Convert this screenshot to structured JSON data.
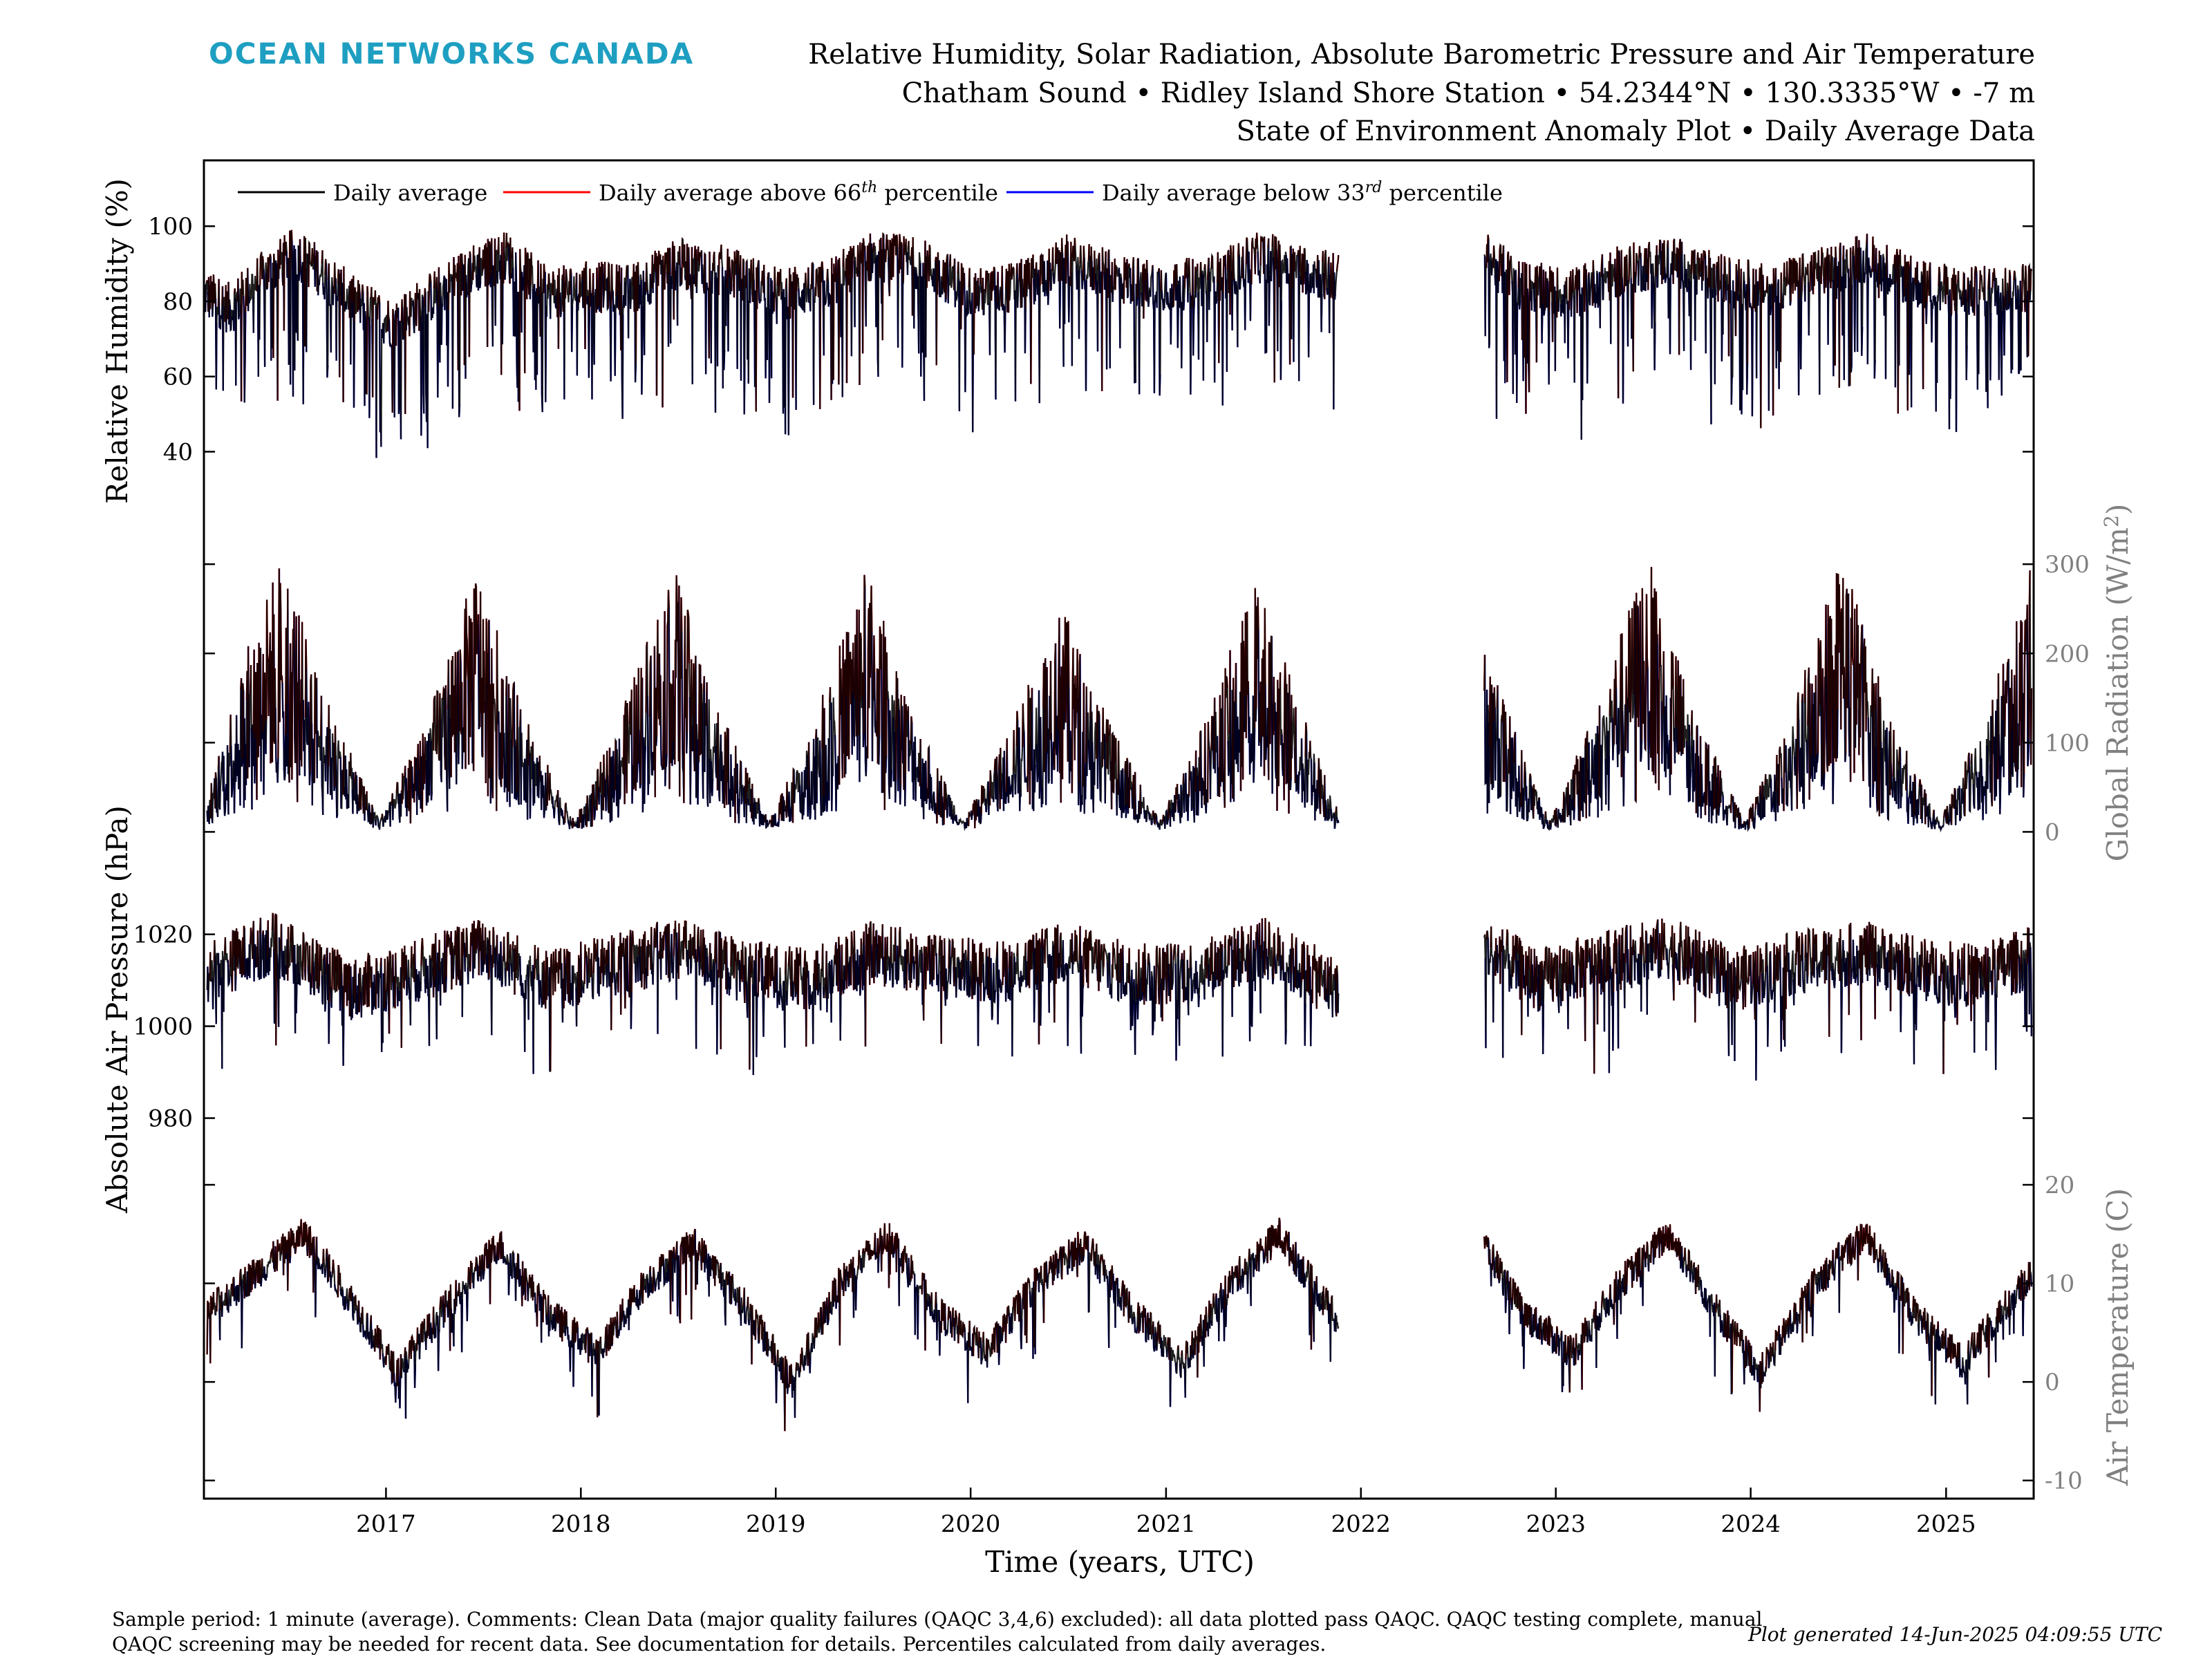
{
  "header": {
    "logo_text": "OCEAN NETWORKS CANADA",
    "title_line1": "Relative Humidity, Solar Radiation, Absolute Barometric Pressure and Air Temperature",
    "title_line2": "Chatham Sound • Ridley Island Shore Station • 54.2344°N • 130.3335°W • -7 m",
    "title_line3": "State of Environment Anomaly Plot • Daily Average Data"
  },
  "footer": {
    "note_line1": "Sample period: 1 minute (average). Comments: Clean Data (major quality failures (QAQC 3,4,6) excluded): all data plotted pass QAQC. QAQC testing complete, manual",
    "note_line2": "QAQC screening may be needed for recent data. See documentation for details. Percentiles calculated from daily averages.",
    "generated": "Plot generated 14-Jun-2025 04:09:55 UTC"
  },
  "colors": {
    "logo": "#1e9fc1",
    "daily": "#000000",
    "above": "#ff0000",
    "below": "#0000ff",
    "right_axis": "#808080"
  },
  "chart_data": {
    "type": "line",
    "xlabel": "Time (years, UTC)",
    "x_ticks": [
      "2017",
      "2018",
      "2019",
      "2020",
      "2021",
      "2022",
      "2023",
      "2024",
      "2025"
    ],
    "xlim": [
      "2016-01-26",
      "2025-06-14"
    ],
    "data_gap": [
      "2021-11-25",
      "2022-08-18"
    ],
    "legend": {
      "placement": "top-left",
      "daily": "Daily average",
      "above_prefix": "Daily average above 66",
      "above_sup": "th",
      "above_suffix": " percentile",
      "below_prefix": "Daily average below 33",
      "below_sup": "rd",
      "below_suffix": " percentile"
    },
    "panels": [
      {
        "id": "humidity",
        "ylabel": "Relative Humidity (%)",
        "axis_side": "left",
        "yticks": [
          "40",
          "60",
          "80",
          "100"
        ],
        "ylim": [
          25,
          112
        ],
        "seasonal": {
          "mean": 87,
          "amplitude": 4,
          "peak_month": 8
        },
        "series": [
          {
            "date": "2016-01-26",
            "value": 82
          },
          {
            "date": "2016-03-15",
            "value": 78
          },
          {
            "date": "2016-05-01",
            "value": 85
          },
          {
            "date": "2016-07-15",
            "value": 93
          },
          {
            "date": "2016-09-01",
            "value": 88
          },
          {
            "date": "2016-11-01",
            "value": 80
          },
          {
            "date": "2017-01-15",
            "value": 74
          },
          {
            "date": "2017-03-15",
            "value": 80
          },
          {
            "date": "2017-06-01",
            "value": 88
          },
          {
            "date": "2017-08-15",
            "value": 92
          },
          {
            "date": "2017-11-01",
            "value": 82
          },
          {
            "date": "2018-01-15",
            "value": 84
          },
          {
            "date": "2018-04-01",
            "value": 83
          },
          {
            "date": "2018-07-01",
            "value": 90
          },
          {
            "date": "2018-10-01",
            "value": 88
          },
          {
            "date": "2019-01-15",
            "value": 82
          },
          {
            "date": "2019-04-01",
            "value": 84
          },
          {
            "date": "2019-07-01",
            "value": 92
          },
          {
            "date": "2019-10-01",
            "value": 90
          },
          {
            "date": "2020-01-15",
            "value": 82
          },
          {
            "date": "2020-04-01",
            "value": 84
          },
          {
            "date": "2020-07-01",
            "value": 91
          },
          {
            "date": "2020-10-01",
            "value": 86
          },
          {
            "date": "2021-01-15",
            "value": 84
          },
          {
            "date": "2021-04-01",
            "value": 86
          },
          {
            "date": "2021-07-01",
            "value": 92
          },
          {
            "date": "2021-11-20",
            "value": 86
          },
          {
            "date": "2022-08-20",
            "value": 92
          },
          {
            "date": "2022-11-01",
            "value": 84
          },
          {
            "date": "2023-02-01",
            "value": 82
          },
          {
            "date": "2023-05-01",
            "value": 88
          },
          {
            "date": "2023-08-01",
            "value": 91
          },
          {
            "date": "2023-11-01",
            "value": 86
          },
          {
            "date": "2024-02-01",
            "value": 83
          },
          {
            "date": "2024-05-01",
            "value": 87
          },
          {
            "date": "2024-08-01",
            "value": 92
          },
          {
            "date": "2024-11-01",
            "value": 85
          },
          {
            "date": "2025-02-01",
            "value": 82
          },
          {
            "date": "2025-06-10",
            "value": 84
          }
        ]
      },
      {
        "id": "radiation",
        "ylabel": "Global Radiation (W/m",
        "ylabel_sup": "2",
        "ylabel_end": ")",
        "axis_side": "right",
        "yticks": [
          "0",
          "100",
          "200",
          "300"
        ],
        "ylim": [
          -2,
          335
        ],
        "seasonal": {
          "mean": 105,
          "amplitude": 100,
          "peak_month": 6
        },
        "series": [
          {
            "date": "2016-02-01",
            "value": 25
          },
          {
            "date": "2016-04-01",
            "value": 120
          },
          {
            "date": "2016-06-20",
            "value": 210
          },
          {
            "date": "2016-09-01",
            "value": 110
          },
          {
            "date": "2016-12-20",
            "value": 10
          },
          {
            "date": "2017-03-15",
            "value": 80
          },
          {
            "date": "2017-06-20",
            "value": 200
          },
          {
            "date": "2017-09-15",
            "value": 90
          },
          {
            "date": "2017-12-20",
            "value": 8
          },
          {
            "date": "2018-03-15",
            "value": 85
          },
          {
            "date": "2018-06-20",
            "value": 205
          },
          {
            "date": "2018-09-15",
            "value": 95
          },
          {
            "date": "2018-12-20",
            "value": 8
          },
          {
            "date": "2019-03-15",
            "value": 85
          },
          {
            "date": "2019-06-20",
            "value": 200
          },
          {
            "date": "2019-09-15",
            "value": 90
          },
          {
            "date": "2019-12-20",
            "value": 8
          },
          {
            "date": "2020-03-15",
            "value": 80
          },
          {
            "date": "2020-06-20",
            "value": 170
          },
          {
            "date": "2020-09-15",
            "value": 85
          },
          {
            "date": "2020-12-20",
            "value": 8
          },
          {
            "date": "2021-03-15",
            "value": 85
          },
          {
            "date": "2021-06-20",
            "value": 190
          },
          {
            "date": "2021-11-20",
            "value": 15
          },
          {
            "date": "2022-08-20",
            "value": 140
          },
          {
            "date": "2022-12-20",
            "value": 8
          },
          {
            "date": "2023-03-15",
            "value": 90
          },
          {
            "date": "2023-06-20",
            "value": 210
          },
          {
            "date": "2023-09-15",
            "value": 95
          },
          {
            "date": "2023-12-20",
            "value": 8
          },
          {
            "date": "2024-03-15",
            "value": 85
          },
          {
            "date": "2024-06-20",
            "value": 215
          },
          {
            "date": "2024-09-15",
            "value": 90
          },
          {
            "date": "2024-12-20",
            "value": 8
          },
          {
            "date": "2025-03-15",
            "value": 90
          },
          {
            "date": "2025-06-10",
            "value": 200
          }
        ]
      },
      {
        "id": "pressure",
        "ylabel": "Absolute Air Pressure (hPa)",
        "axis_side": "left",
        "yticks": [
          "980",
          "1000",
          "1020"
        ],
        "ylim": [
          970,
          1038
        ],
        "seasonal": {
          "mean": 1014,
          "amplitude": 3,
          "peak_month": 7
        },
        "series": [
          {
            "date": "2016-02-01",
            "value": 1012
          },
          {
            "date": "2016-06-01",
            "value": 1018
          },
          {
            "date": "2016-11-01",
            "value": 1008
          },
          {
            "date": "2017-03-01",
            "value": 1012
          },
          {
            "date": "2017-07-01",
            "value": 1017
          },
          {
            "date": "2017-11-01",
            "value": 1010
          },
          {
            "date": "2018-03-01",
            "value": 1013
          },
          {
            "date": "2018-07-01",
            "value": 1017
          },
          {
            "date": "2018-11-01",
            "value": 1012
          },
          {
            "date": "2019-03-01",
            "value": 1010
          },
          {
            "date": "2019-07-01",
            "value": 1016
          },
          {
            "date": "2019-11-01",
            "value": 1013
          },
          {
            "date": "2020-03-01",
            "value": 1012
          },
          {
            "date": "2020-07-01",
            "value": 1016
          },
          {
            "date": "2020-11-01",
            "value": 1011
          },
          {
            "date": "2021-03-01",
            "value": 1012
          },
          {
            "date": "2021-07-01",
            "value": 1017
          },
          {
            "date": "2021-11-20",
            "value": 1008
          },
          {
            "date": "2022-08-20",
            "value": 1017
          },
          {
            "date": "2022-12-01",
            "value": 1010
          },
          {
            "date": "2023-04-01",
            "value": 1014
          },
          {
            "date": "2023-08-01",
            "value": 1017
          },
          {
            "date": "2023-12-01",
            "value": 1010
          },
          {
            "date": "2024-04-01",
            "value": 1014
          },
          {
            "date": "2024-08-01",
            "value": 1016
          },
          {
            "date": "2024-12-01",
            "value": 1012
          },
          {
            "date": "2025-03-01",
            "value": 1011
          },
          {
            "date": "2025-06-10",
            "value": 1015
          }
        ]
      },
      {
        "id": "temperature",
        "ylabel": "Air Temperature (C)",
        "axis_side": "right",
        "yticks": [
          "-10",
          "0",
          "10",
          "20"
        ],
        "ylim": [
          -11,
          20
        ],
        "seasonal": {
          "mean": 7.5,
          "amplitude": 7,
          "peak_month": 8
        },
        "series": [
          {
            "date": "2016-02-01",
            "value": 7
          },
          {
            "date": "2016-05-01",
            "value": 11
          },
          {
            "date": "2016-08-01",
            "value": 15
          },
          {
            "date": "2016-11-01",
            "value": 8
          },
          {
            "date": "2017-01-20",
            "value": 1
          },
          {
            "date": "2017-04-15",
            "value": 7
          },
          {
            "date": "2017-08-01",
            "value": 14
          },
          {
            "date": "2017-11-01",
            "value": 7
          },
          {
            "date": "2018-02-01",
            "value": 3
          },
          {
            "date": "2018-05-01",
            "value": 10
          },
          {
            "date": "2018-08-01",
            "value": 14
          },
          {
            "date": "2018-11-01",
            "value": 8
          },
          {
            "date": "2019-02-01",
            "value": 0
          },
          {
            "date": "2019-05-01",
            "value": 10
          },
          {
            "date": "2019-08-01",
            "value": 15
          },
          {
            "date": "2019-11-01",
            "value": 7
          },
          {
            "date": "2020-02-01",
            "value": 3
          },
          {
            "date": "2020-05-01",
            "value": 10
          },
          {
            "date": "2020-08-01",
            "value": 14
          },
          {
            "date": "2020-11-01",
            "value": 7
          },
          {
            "date": "2021-02-01",
            "value": 2
          },
          {
            "date": "2021-05-01",
            "value": 10
          },
          {
            "date": "2021-08-01",
            "value": 15
          },
          {
            "date": "2021-11-20",
            "value": 6
          },
          {
            "date": "2022-08-20",
            "value": 14
          },
          {
            "date": "2022-11-01",
            "value": 7
          },
          {
            "date": "2023-02-01",
            "value": 3
          },
          {
            "date": "2023-05-01",
            "value": 10
          },
          {
            "date": "2023-08-01",
            "value": 15
          },
          {
            "date": "2023-11-01",
            "value": 7
          },
          {
            "date": "2024-01-20",
            "value": 1
          },
          {
            "date": "2024-05-01",
            "value": 10
          },
          {
            "date": "2024-08-01",
            "value": 15
          },
          {
            "date": "2024-11-01",
            "value": 7
          },
          {
            "date": "2025-02-01",
            "value": 2
          },
          {
            "date": "2025-06-10",
            "value": 11
          }
        ]
      }
    ]
  }
}
